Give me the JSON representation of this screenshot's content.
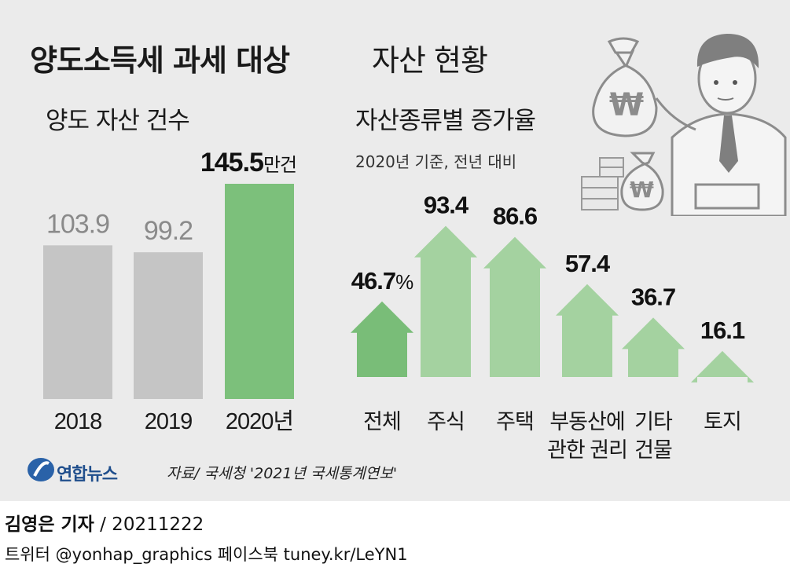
{
  "title": {
    "bold": "양도소득세 과세 대상",
    "light": "자산 현황"
  },
  "left_panel": {
    "subtitle": "양도 자산 건수"
  },
  "right_panel": {
    "subtitle": "자산종류별 증가율",
    "note": "2020년 기준, 전년 대비"
  },
  "chart_data": [
    {
      "type": "bar",
      "title": "양도 자산 건수",
      "categories": [
        "2018",
        "2019",
        "2020년"
      ],
      "values": [
        103.9,
        99.2,
        145.5
      ],
      "value_labels": [
        "103.9",
        "99.2",
        "145.5"
      ],
      "value_unit": "만건",
      "colors": [
        "#c5c5c5",
        "#c5c5c5",
        "#7cc07b"
      ]
    },
    {
      "type": "bar",
      "title": "자산종류별 증가율",
      "subtitle": "2020년 기준, 전년 대비",
      "categories": [
        "전체",
        "주식",
        "주택",
        "부동산에 관한 권리",
        "기타 건물",
        "토지"
      ],
      "category_lines": [
        [
          "전체"
        ],
        [
          "주식"
        ],
        [
          "주택"
        ],
        [
          "부동산에",
          "관한 권리"
        ],
        [
          "기타",
          "건물"
        ],
        [
          "토지"
        ]
      ],
      "values": [
        46.7,
        93.4,
        86.6,
        57.4,
        36.7,
        16.1
      ],
      "value_labels": [
        "46.7",
        "93.4",
        "86.6",
        "57.4",
        "36.7",
        "16.1"
      ],
      "first_value_suffix": "%",
      "colors": [
        "#79bd78",
        "#a4d2a0",
        "#a4d2a0",
        "#a4d2a0",
        "#a4d2a0",
        "#a4d2a0"
      ]
    }
  ],
  "illustration": {
    "icon": "businessman-with-money-bags",
    "currency_symbol": "₩"
  },
  "footer": {
    "logo_text": "연합뉴스",
    "source": "자료/ 국세청 '2021년 국세통계연보'",
    "reporter": "김영은 기자",
    "date": "/ 20211222",
    "social": "트위터 @yonhap_graphics  페이스북 tuney.kr/LeYN1"
  }
}
